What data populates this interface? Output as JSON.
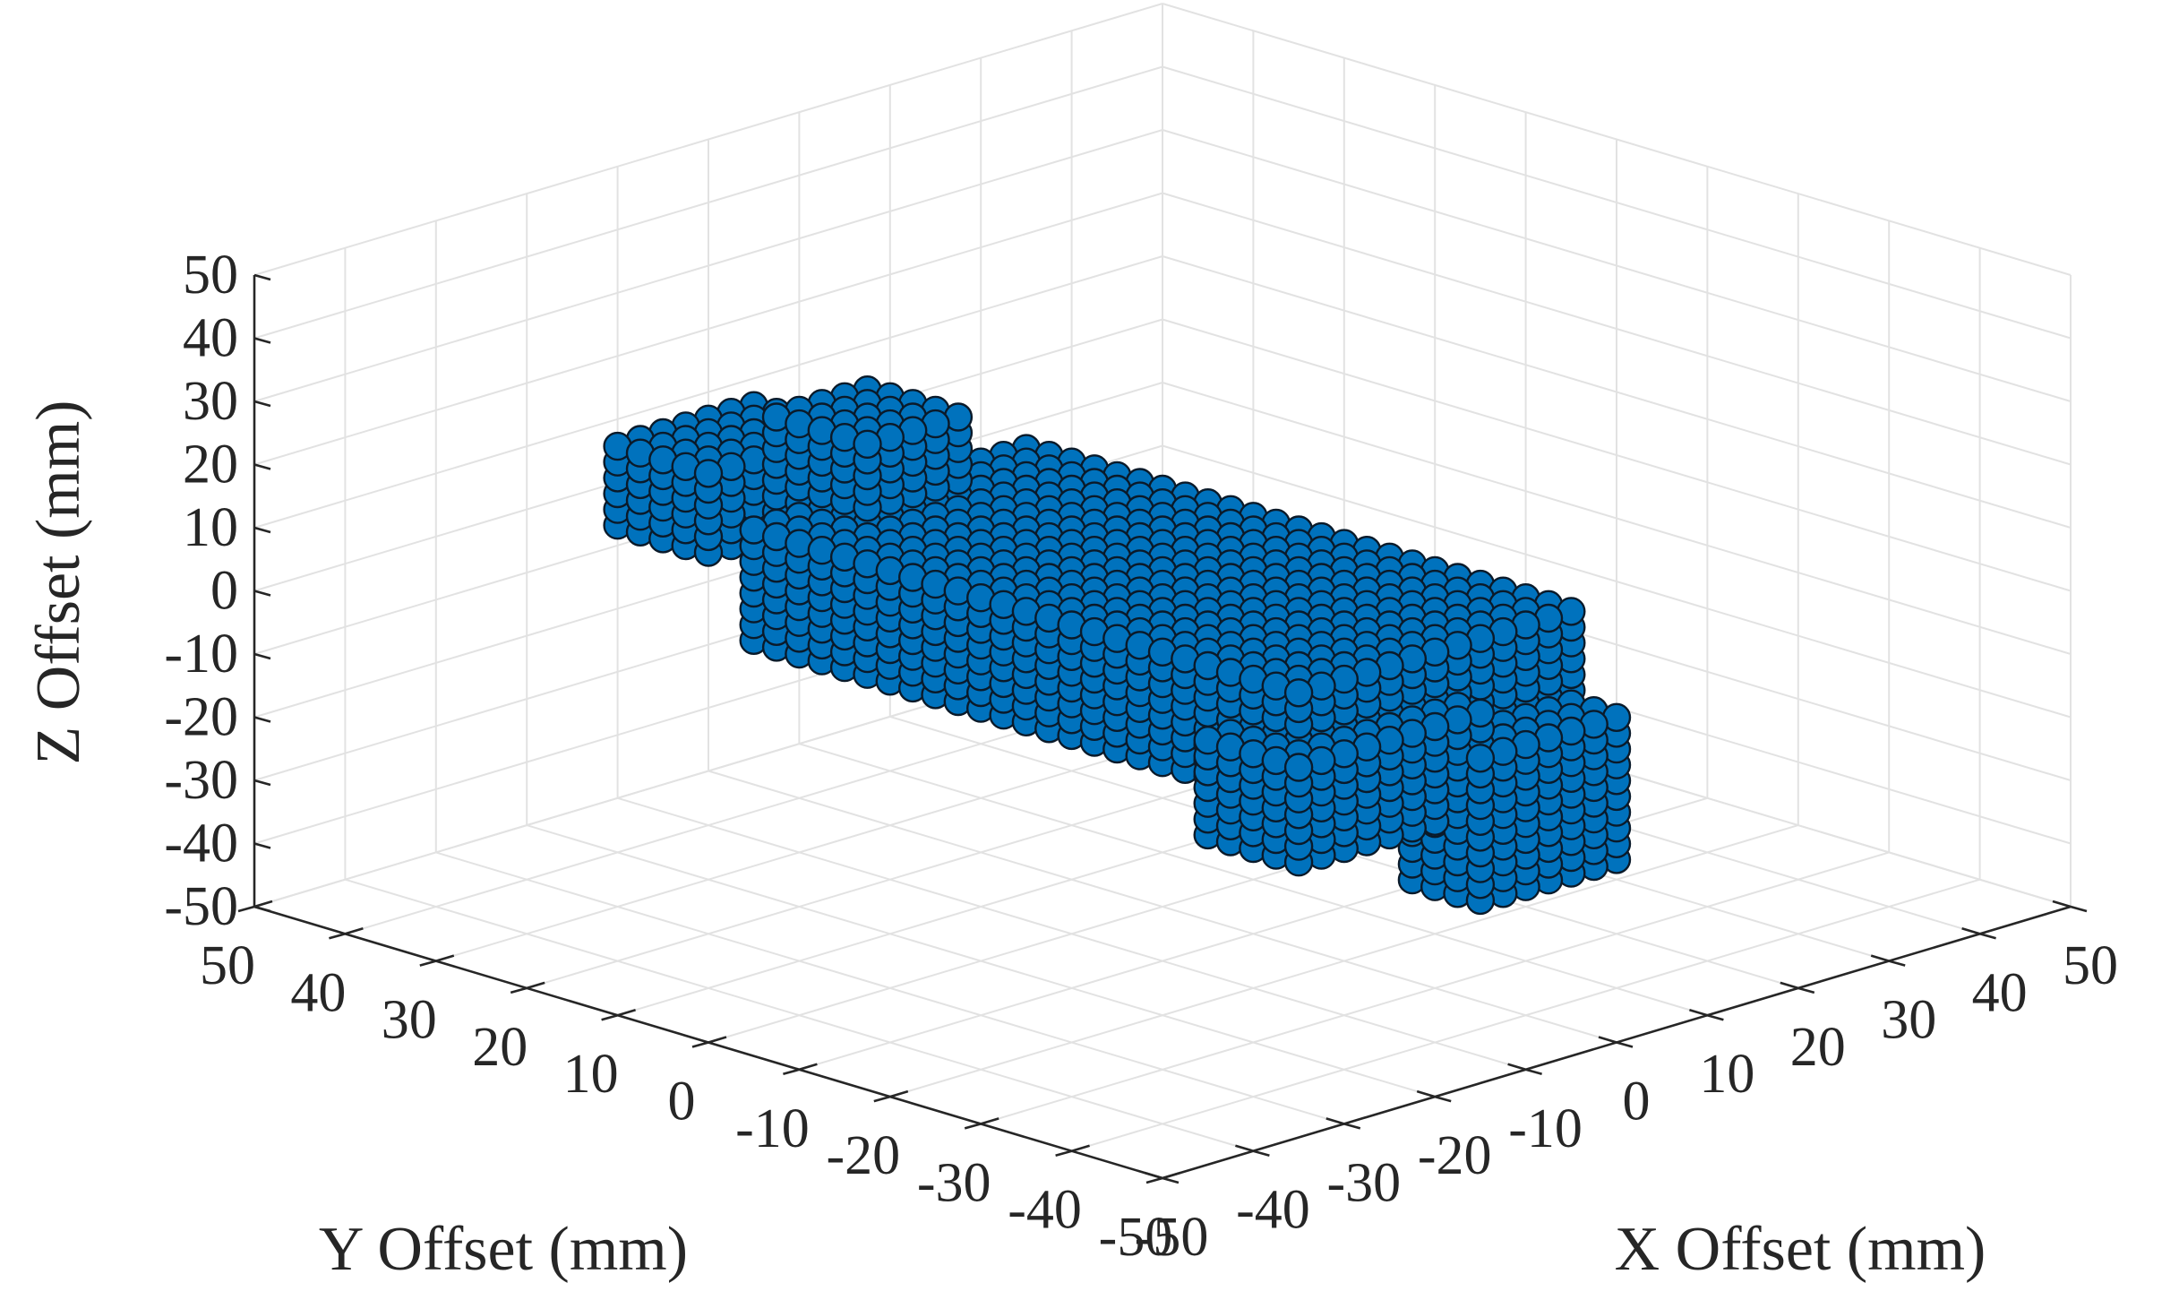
{
  "chart_data": {
    "type": "scatter3d",
    "title": "",
    "xlabel": "X Offset (mm)",
    "ylabel": "Y Offset (mm)",
    "zlabel": "Z Offset (mm)",
    "xlim": [
      -50,
      50
    ],
    "ylim": [
      -50,
      50
    ],
    "zlim": [
      -50,
      50
    ],
    "xticks": [
      "-50",
      "-40",
      "-30",
      "-20",
      "-10",
      "0",
      "10",
      "20",
      "30",
      "40",
      "50"
    ],
    "yticks": [
      "50",
      "40",
      "30",
      "20",
      "10",
      "0",
      "-10",
      "-20",
      "-30",
      "-40",
      "-50"
    ],
    "zticks": [
      "50",
      "40",
      "30",
      "20",
      "10",
      "0",
      "-10",
      "-20",
      "-30",
      "-40",
      "-50"
    ],
    "grid": true,
    "marker_color": "#0072BD",
    "marker_edge_color": "#0a1a2a",
    "marker_spacing_mm": 2.5,
    "series": [
      {
        "description": "voxel point cloud of a rectangular block with end caps",
        "blocks": [
          {
            "x": [
              -15,
              0
            ],
            "y": [
              35,
              45
            ],
            "z": [
              -2.5,
              10
            ]
          },
          {
            "x": [
              -12.5,
              -2.5
            ],
            "y": [
              20,
              30
            ],
            "z": [
              -2.5,
              20
            ]
          },
          {
            "x": [
              -20,
              10
            ],
            "y": [
              -35,
              25
            ],
            "z": [
              -10,
              7.5
            ]
          },
          {
            "x": [
              -25,
              -5
            ],
            "y": [
              -40,
              -30
            ],
            "z": [
              -15,
              0
            ]
          },
          {
            "x": [
              -7.5,
              7.5
            ],
            "y": [
              -42.5,
              -35
            ],
            "z": [
              -27.5,
              -5
            ]
          }
        ]
      }
    ]
  }
}
